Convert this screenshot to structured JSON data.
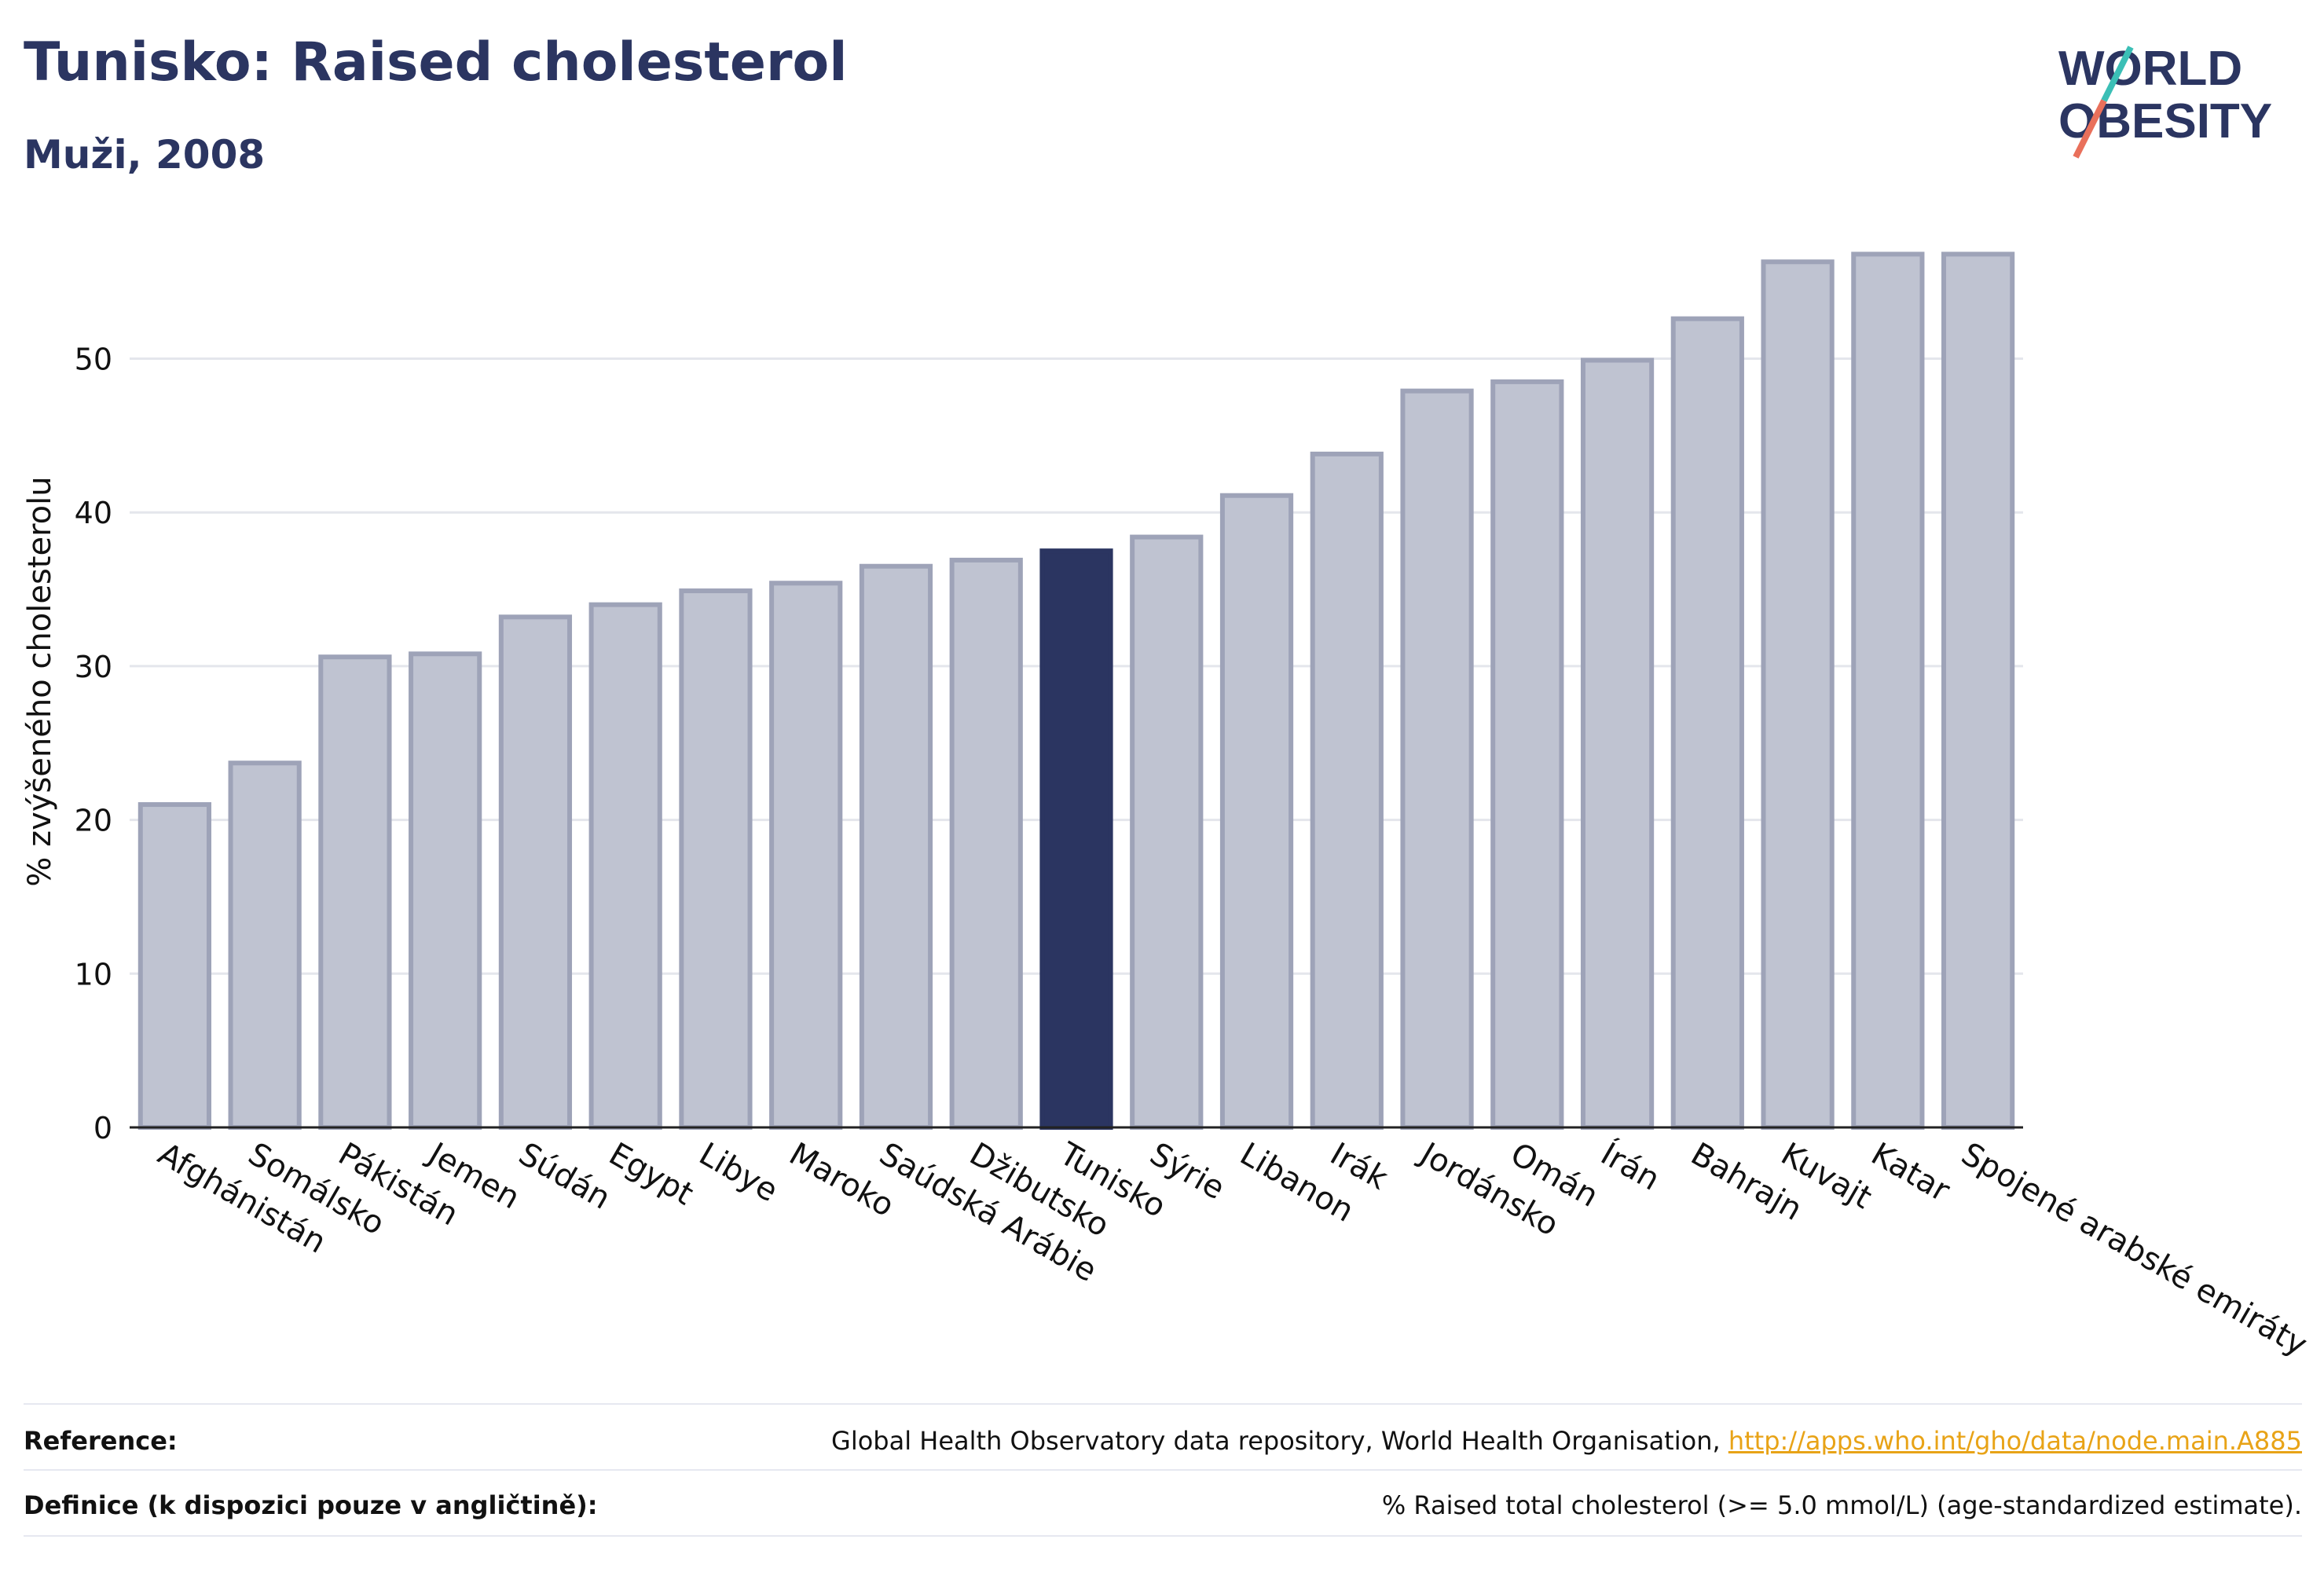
{
  "header": {
    "title": "Tunisko: Raised cholesterol",
    "subtitle": "Muži, 2008"
  },
  "logo": {
    "line1": "WORLD",
    "line2": "OBESITY"
  },
  "colors": {
    "bar_default": "#bfc3d1",
    "bar_default_stroke": "#9ea3b8",
    "bar_highlight": "#2b3561",
    "accent": "#2b3561",
    "link": "#e8a317",
    "logo_teal": "#3bbfb6",
    "logo_coral": "#e9705b"
  },
  "chart_data": {
    "type": "bar",
    "ylabel": "% zvýšeného cholesterolu",
    "ylim": [
      0,
      58
    ],
    "yticks": [
      0,
      10,
      20,
      30,
      40,
      50
    ],
    "grid": true,
    "highlight": "Tunisko",
    "categories": [
      "Afghánistán",
      "Somálsko",
      "Pákistán",
      "Jemen",
      "Súdán",
      "Egypt",
      "Libye",
      "Maroko",
      "Saúdská Arábie",
      "Džibutsko",
      "Tunisko",
      "Sýrie",
      "Libanon",
      "Irák",
      "Jordánsko",
      "Omán",
      "Írán",
      "Bahrajn",
      "Kuvajt",
      "Katar",
      "Spojené arabské emiráty"
    ],
    "values": [
      21.0,
      23.7,
      30.6,
      30.8,
      33.2,
      34.0,
      34.9,
      35.4,
      36.5,
      36.9,
      37.5,
      38.4,
      41.1,
      43.8,
      47.9,
      48.5,
      49.9,
      52.6,
      56.3,
      56.8,
      56.8
    ]
  },
  "footer": {
    "reference_label": "Reference:",
    "reference_text": "Global Health Observatory data repository, World Health Organisation, ",
    "reference_link": "http://apps.who.int/gho/data/node.main.A885",
    "definition_label": "Definice (k dispozici pouze v angličtině):",
    "definition_text": "% Raised total cholesterol (>= 5.0 mmol/L) (age-standardized estimate)."
  }
}
